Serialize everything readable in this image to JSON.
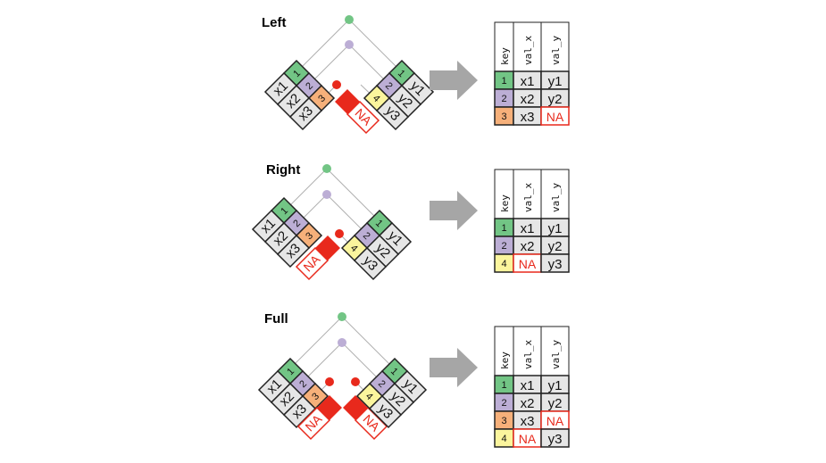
{
  "colors": {
    "key1": "#72c585",
    "key2": "#bcaed5",
    "key3": "#f6b07a",
    "key4": "#fbf59d",
    "cell": "#e6e6e6",
    "na": "#e8291c",
    "arrow": "#a6a6a6",
    "line": "#b0b0b0"
  },
  "headers": {
    "key": "key",
    "val_x": "val_x",
    "val_y": "val_y"
  },
  "na_label": "NA",
  "panels": [
    {
      "title": "Left",
      "left_table": [
        {
          "key": "1",
          "val": "x1"
        },
        {
          "key": "2",
          "val": "x2"
        },
        {
          "key": "3",
          "val": "x3"
        }
      ],
      "right_table": [
        {
          "key": "1",
          "val": "y1"
        },
        {
          "key": "2",
          "val": "y2"
        },
        {
          "key": "4",
          "val": "y3"
        }
      ],
      "result": [
        {
          "key": "1",
          "x": "x1",
          "y": "y1"
        },
        {
          "key": "2",
          "x": "x2",
          "y": "y2"
        },
        {
          "key": "3",
          "x": "x3",
          "y": "NA"
        }
      ]
    },
    {
      "title": "Right",
      "left_table": [
        {
          "key": "1",
          "val": "x1"
        },
        {
          "key": "2",
          "val": "x2"
        },
        {
          "key": "3",
          "val": "x3"
        }
      ],
      "right_table": [
        {
          "key": "1",
          "val": "y1"
        },
        {
          "key": "2",
          "val": "y2"
        },
        {
          "key": "4",
          "val": "y3"
        }
      ],
      "result": [
        {
          "key": "1",
          "x": "x1",
          "y": "y1"
        },
        {
          "key": "2",
          "x": "x2",
          "y": "y2"
        },
        {
          "key": "4",
          "x": "NA",
          "y": "y3"
        }
      ]
    },
    {
      "title": "Full",
      "left_table": [
        {
          "key": "1",
          "val": "x1"
        },
        {
          "key": "2",
          "val": "x2"
        },
        {
          "key": "3",
          "val": "x3"
        }
      ],
      "right_table": [
        {
          "key": "1",
          "val": "y1"
        },
        {
          "key": "2",
          "val": "y2"
        },
        {
          "key": "4",
          "val": "y3"
        }
      ],
      "result": [
        {
          "key": "1",
          "x": "x1",
          "y": "y1"
        },
        {
          "key": "2",
          "x": "x2",
          "y": "y2"
        },
        {
          "key": "3",
          "x": "x3",
          "y": "NA"
        },
        {
          "key": "4",
          "x": "NA",
          "y": "y3"
        }
      ]
    }
  ]
}
